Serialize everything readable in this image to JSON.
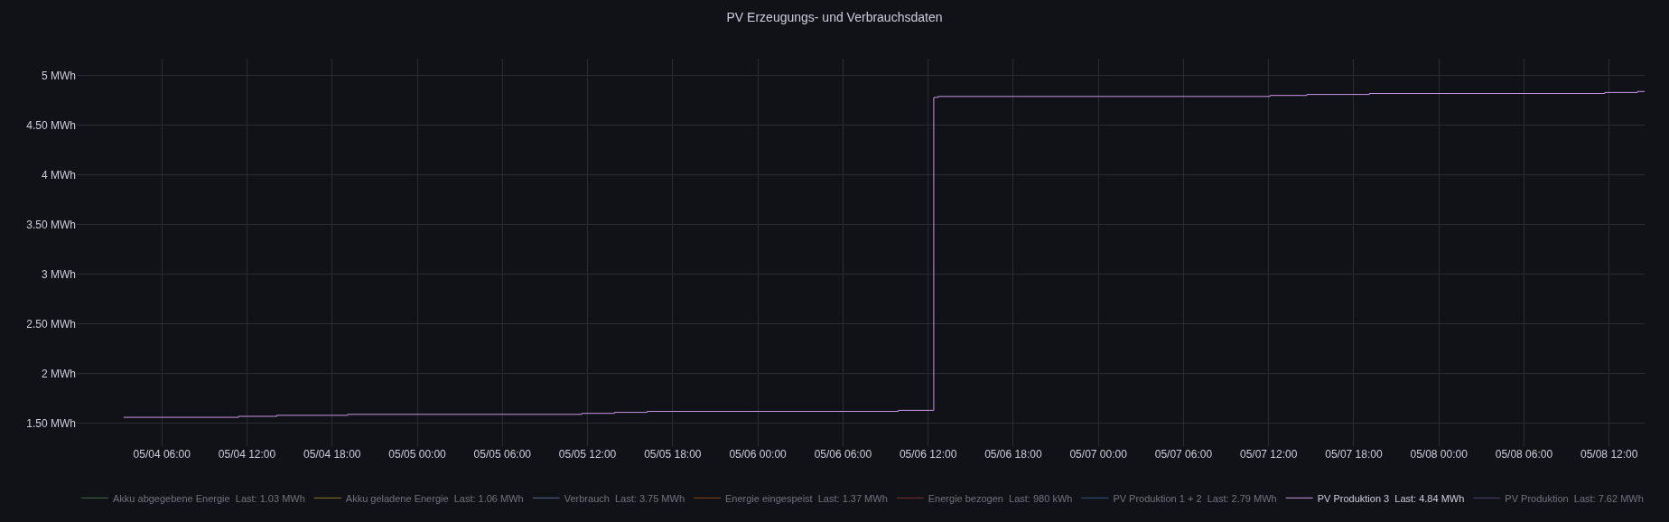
{
  "chart_data": {
    "type": "step",
    "title": "PV Erzeugungs- und Verbrauchsdaten",
    "x": [
      "--05-04T03:18",
      "--05-04T11:24",
      "--05-04T14:06",
      "--05-04T19:06",
      "--05-05T11:36",
      "--05-05T13:54",
      "--05-05T16:12",
      "--05-06T09:54",
      "--05-06T12:24",
      "--05-06T12:42",
      "--05-07T12:06",
      "--05-07T14:42",
      "--05-07T19:06",
      "--05-08T11:42",
      "--05-08T14:00",
      "--05-08T14:30"
    ],
    "series": [
      {
        "name": "Akku abgegebene Energie  Last: 1.03 MWh",
        "color": "#73bf69",
        "values": [
          null,
          null,
          null,
          null,
          null,
          null,
          null,
          null,
          null,
          null,
          null,
          null,
          null,
          null,
          null,
          null
        ]
      },
      {
        "name": "Akku geladene Energie  Last: 1.06 MWh",
        "color": "#fade2a",
        "values": [
          null,
          null,
          null,
          null,
          null,
          null,
          null,
          null,
          null,
          null,
          null,
          null,
          null,
          null,
          null,
          null
        ]
      },
      {
        "name": "Verbrauch  Last: 3.75 MWh",
        "color": "#8ab8ff",
        "values": [
          null,
          null,
          null,
          null,
          null,
          null,
          null,
          null,
          null,
          null,
          null,
          null,
          null,
          null,
          null,
          null
        ]
      },
      {
        "name": "Energie eingespeist  Last: 1.37 MWh",
        "color": "#ff780a",
        "values": [
          null,
          null,
          null,
          null,
          null,
          null,
          null,
          null,
          null,
          null,
          null,
          null,
          null,
          null,
          null,
          null
        ]
      },
      {
        "name": "Energie bezogen  Last: 980 kWh",
        "color": "#f2495c",
        "values": [
          null,
          null,
          null,
          null,
          null,
          null,
          null,
          null,
          null,
          null,
          null,
          null,
          null,
          null,
          null,
          null
        ]
      },
      {
        "name": "PV Produktion 1 + 2  Last: 2.79 MWh",
        "color": "#5794f2",
        "values": [
          null,
          null,
          null,
          null,
          null,
          null,
          null,
          null,
          null,
          null,
          null,
          null,
          null,
          null,
          null,
          null
        ]
      },
      {
        "name": "PV Produktion 3  Last: 4.84 MWh",
        "color": "#ca95e5",
        "values": [
          1.56,
          1.57,
          1.58,
          1.59,
          1.6,
          1.61,
          1.62,
          1.63,
          4.78,
          4.79,
          4.8,
          4.81,
          4.82,
          4.83,
          4.84,
          4.84
        ]
      },
      {
        "name": "PV Produktion  Last: 7.62 MWh",
        "color": "#8f6fc1",
        "values": [
          null,
          null,
          null,
          null,
          null,
          null,
          null,
          null,
          null,
          null,
          null,
          null,
          null,
          null,
          null,
          null
        ]
      }
    ],
    "xlim": [
      "--05-04T00:00",
      "--05-08T14:30"
    ],
    "xticks": [
      {
        "value": "--05-04T06:00",
        "label": "05/04 06:00"
      },
      {
        "value": "--05-04T12:00",
        "label": "05/04 12:00"
      },
      {
        "value": "--05-04T18:00",
        "label": "05/04 18:00"
      },
      {
        "value": "--05-05T00:00",
        "label": "05/05 00:00"
      },
      {
        "value": "--05-05T06:00",
        "label": "05/05 06:00"
      },
      {
        "value": "--05-05T12:00",
        "label": "05/05 12:00"
      },
      {
        "value": "--05-05T18:00",
        "label": "05/05 18:00"
      },
      {
        "value": "--05-06T00:00",
        "label": "05/06 00:00"
      },
      {
        "value": "--05-06T06:00",
        "label": "05/06 06:00"
      },
      {
        "value": "--05-06T12:00",
        "label": "05/06 12:00"
      },
      {
        "value": "--05-06T18:00",
        "label": "05/06 18:00"
      },
      {
        "value": "--05-07T00:00",
        "label": "05/07 00:00"
      },
      {
        "value": "--05-07T06:00",
        "label": "05/07 06:00"
      },
      {
        "value": "--05-07T12:00",
        "label": "05/07 12:00"
      },
      {
        "value": "--05-07T18:00",
        "label": "05/07 18:00"
      },
      {
        "value": "--05-08T00:00",
        "label": "05/08 00:00"
      },
      {
        "value": "--05-08T06:00",
        "label": "05/08 06:00"
      },
      {
        "value": "--05-08T12:00",
        "label": "05/08 12:00"
      }
    ],
    "ylim": [
      1.27,
      5.17
    ],
    "yticks": [
      {
        "value": 1.5,
        "label": "1.50 MWh"
      },
      {
        "value": 2,
        "label": "2 MWh"
      },
      {
        "value": 2.5,
        "label": "2.50 MWh"
      },
      {
        "value": 3,
        "label": "3 MWh"
      },
      {
        "value": 3.5,
        "label": "3.50 MWh"
      },
      {
        "value": 4,
        "label": "4 MWh"
      },
      {
        "value": 4.5,
        "label": "4.50 MWh"
      },
      {
        "value": 5,
        "label": "5 MWh"
      }
    ],
    "grid": true,
    "legend": "bottom"
  }
}
